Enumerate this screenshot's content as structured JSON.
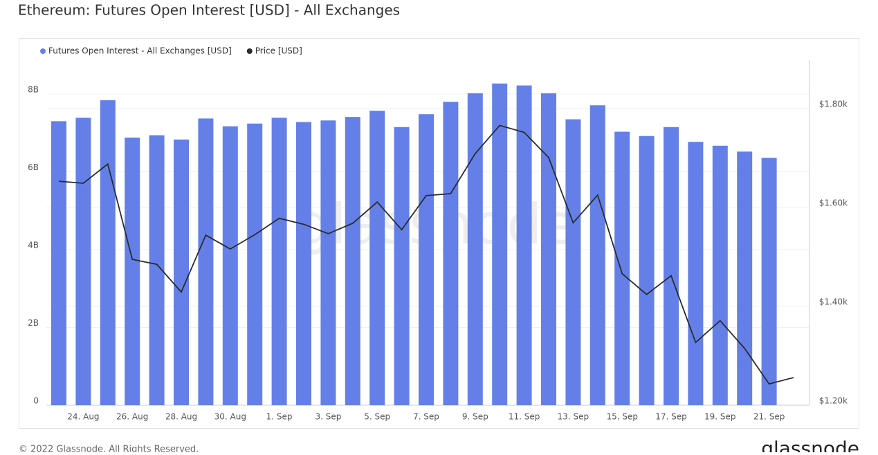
{
  "chart_data": {
    "type": "bar-line",
    "title": "Ethereum: Futures Open Interest [USD] - All Exchanges",
    "footer": "© 2022 Glassnode. All Rights Reserved.",
    "brand": "glassnode",
    "categories": [
      null,
      "24. Aug",
      null,
      "26. Aug",
      null,
      "28. Aug",
      null,
      "30. Aug",
      null,
      "1. Sep",
      null,
      "3. Sep",
      null,
      "5. Sep",
      null,
      "7. Sep",
      null,
      "9. Sep",
      null,
      "11. Sep",
      null,
      "13. Sep",
      null,
      "15. Sep",
      null,
      "17. Sep",
      null,
      "19. Sep",
      null,
      "21. Sep",
      null
    ],
    "series": [
      {
        "name": "Futures Open Interest - All Exchanges [USD]",
        "color": "#6480e8",
        "kind": "bar",
        "values": [
          7300000000,
          7390000000,
          7840000000,
          6880000000,
          6940000000,
          6830000000,
          7370000000,
          7170000000,
          7240000000,
          7390000000,
          7280000000,
          7320000000,
          7410000000,
          7570000000,
          7150000000,
          7480000000,
          7800000000,
          8020000000,
          8270000000,
          8220000000,
          8020000000,
          7350000000,
          7710000000,
          7030000000,
          6920000000,
          7150000000,
          6770000000,
          6670000000,
          6520000000,
          6360000000,
          null
        ]
      },
      {
        "name": "Price [USD]",
        "color": "#2b2b2b",
        "kind": "line",
        "axis": "y2",
        "values": [
          1653,
          1649,
          1688,
          1495,
          1485,
          1429,
          1544,
          1516,
          1545,
          1578,
          1566,
          1547,
          1568,
          1611,
          1555,
          1624,
          1628,
          1709,
          1766,
          1752,
          1701,
          1569,
          1625,
          1466,
          1424,
          1462,
          1327,
          1371,
          1315,
          1243,
          1256
        ]
      }
    ],
    "ylim": [
      0,
      8870000000
    ],
    "yticks": [
      0,
      {
        "value": 2000000000,
        "label": "2B"
      },
      {
        "value": 4000000000,
        "label": "4B"
      },
      {
        "value": 6000000000,
        "label": "6B"
      },
      {
        "value": 8000000000,
        "label": "8B"
      }
    ],
    "y2lim": [
      1200,
      1898
    ],
    "y2ticks": [
      {
        "value": 1200,
        "label": "$1.20k"
      },
      {
        "value": 1400,
        "label": "$1.40k"
      },
      {
        "value": 1600,
        "label": "$1.60k"
      },
      {
        "value": 1800,
        "label": "$1.80k"
      }
    ],
    "grid": true
  }
}
